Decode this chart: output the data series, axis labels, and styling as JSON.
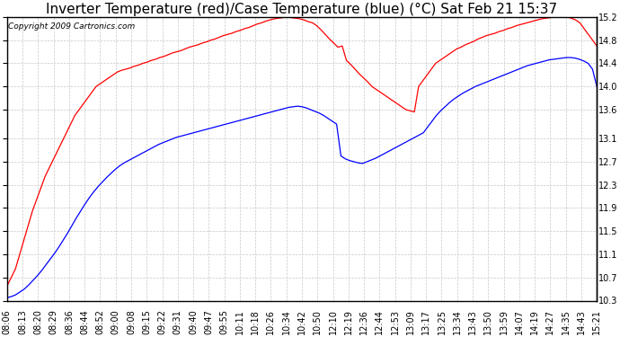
{
  "title": "Inverter Temperature (red)/Case Temperature (blue) (°C) Sat Feb 21 15:37",
  "copyright": "Copyright 2009 Cartronics.com",
  "bg_color": "#ffffff",
  "grid_color": "#c8c8c8",
  "ylim": [
    10.3,
    15.2
  ],
  "yticks": [
    10.3,
    10.7,
    11.1,
    11.5,
    11.9,
    12.3,
    12.7,
    13.1,
    13.6,
    14.0,
    14.4,
    14.8,
    15.2
  ],
  "xtick_labels": [
    "08:06",
    "08:13",
    "08:20",
    "08:29",
    "08:36",
    "08:44",
    "08:52",
    "09:00",
    "09:08",
    "09:15",
    "09:22",
    "09:31",
    "09:40",
    "09:47",
    "09:55",
    "10:11",
    "10:18",
    "10:26",
    "10:34",
    "10:42",
    "10:50",
    "12:10",
    "12:19",
    "12:36",
    "12:44",
    "12:53",
    "13:09",
    "13:17",
    "13:25",
    "13:34",
    "13:43",
    "13:50",
    "13:59",
    "14:07",
    "14:19",
    "14:27",
    "14:35",
    "14:43",
    "15:21"
  ],
  "red_y": [
    10.55,
    10.7,
    10.85,
    11.1,
    11.35,
    11.6,
    11.85,
    12.05,
    12.25,
    12.45,
    12.6,
    12.75,
    12.9,
    13.05,
    13.2,
    13.35,
    13.5,
    13.6,
    13.7,
    13.8,
    13.9,
    14.0,
    14.05,
    14.1,
    14.15,
    14.2,
    14.25,
    14.28,
    14.3,
    14.32,
    14.35,
    14.37,
    14.4,
    14.42,
    14.45,
    14.47,
    14.5,
    14.52,
    14.55,
    14.58,
    14.6,
    14.62,
    14.65,
    14.68,
    14.7,
    14.72,
    14.75,
    14.77,
    14.8,
    14.82,
    14.85,
    14.88,
    14.9,
    14.92,
    14.95,
    14.97,
    15.0,
    15.02,
    15.05,
    15.08,
    15.1,
    15.13,
    15.15,
    15.17,
    15.18,
    15.19,
    15.2,
    15.19,
    15.18,
    15.17,
    15.15,
    15.12,
    15.1,
    15.05,
    14.98,
    14.9,
    14.82,
    14.75,
    14.68,
    14.7,
    14.45,
    14.38,
    14.3,
    14.22,
    14.15,
    14.08,
    14.0,
    13.95,
    13.9,
    13.85,
    13.8,
    13.75,
    13.7,
    13.65,
    13.6,
    13.58,
    13.56,
    14.0,
    14.1,
    14.2,
    14.3,
    14.4,
    14.45,
    14.5,
    14.55,
    14.6,
    14.65,
    14.68,
    14.72,
    14.75,
    14.78,
    14.82,
    14.85,
    14.88,
    14.9,
    14.92,
    14.95,
    14.97,
    15.0,
    15.02,
    15.05,
    15.07,
    15.09,
    15.11,
    15.13,
    15.15,
    15.17,
    15.18,
    15.19,
    15.2,
    15.21,
    15.22,
    15.2,
    15.18,
    15.15,
    15.1,
    15.0,
    14.9,
    14.8,
    14.7
  ],
  "blue_y": [
    10.35,
    10.37,
    10.4,
    10.45,
    10.5,
    10.57,
    10.65,
    10.73,
    10.82,
    10.92,
    11.02,
    11.12,
    11.23,
    11.35,
    11.47,
    11.6,
    11.73,
    11.85,
    11.97,
    12.08,
    12.18,
    12.27,
    12.35,
    12.43,
    12.5,
    12.57,
    12.63,
    12.68,
    12.72,
    12.76,
    12.8,
    12.84,
    12.88,
    12.92,
    12.96,
    13.0,
    13.03,
    13.06,
    13.09,
    13.12,
    13.14,
    13.16,
    13.18,
    13.2,
    13.22,
    13.24,
    13.26,
    13.28,
    13.3,
    13.32,
    13.34,
    13.36,
    13.38,
    13.4,
    13.42,
    13.44,
    13.46,
    13.48,
    13.5,
    13.52,
    13.54,
    13.56,
    13.58,
    13.6,
    13.62,
    13.64,
    13.65,
    13.66,
    13.65,
    13.63,
    13.6,
    13.57,
    13.54,
    13.5,
    13.45,
    13.4,
    13.35,
    12.8,
    12.75,
    12.72,
    12.7,
    12.68,
    12.67,
    12.7,
    12.73,
    12.76,
    12.8,
    12.84,
    12.88,
    12.92,
    12.96,
    13.0,
    13.04,
    13.08,
    13.12,
    13.16,
    13.2,
    13.3,
    13.4,
    13.5,
    13.58,
    13.65,
    13.72,
    13.78,
    13.83,
    13.88,
    13.92,
    13.96,
    14.0,
    14.03,
    14.06,
    14.09,
    14.12,
    14.15,
    14.18,
    14.21,
    14.24,
    14.27,
    14.3,
    14.33,
    14.36,
    14.38,
    14.4,
    14.42,
    14.44,
    14.46,
    14.47,
    14.48,
    14.49,
    14.5,
    14.5,
    14.49,
    14.47,
    14.44,
    14.4,
    14.3,
    14.0
  ],
  "red_color": "#ff0000",
  "blue_color": "#0000ff",
  "title_fontsize": 11,
  "tick_fontsize": 7,
  "copyright_fontsize": 6.5
}
